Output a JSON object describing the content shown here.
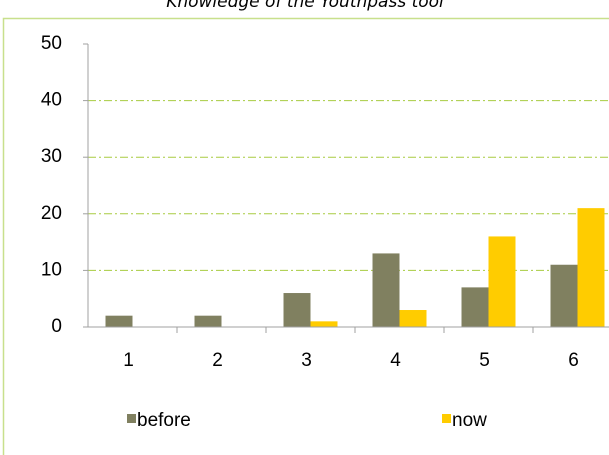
{
  "chart_data": {
    "type": "bar",
    "title": "Knowledge of the Youthpass tool",
    "categories": [
      "1",
      "2",
      "3",
      "4",
      "5",
      "6"
    ],
    "series": [
      {
        "name": "before",
        "color": "#808060",
        "values": [
          2,
          2,
          6,
          13,
          7,
          11
        ]
      },
      {
        "name": "now",
        "color": "#ffcc00",
        "values": [
          0,
          0,
          1,
          3,
          16,
          21
        ]
      }
    ],
    "ylim": [
      0,
      50
    ],
    "yticks": [
      0,
      10,
      20,
      30,
      40,
      50
    ],
    "grid": true,
    "legend": "bottom"
  }
}
